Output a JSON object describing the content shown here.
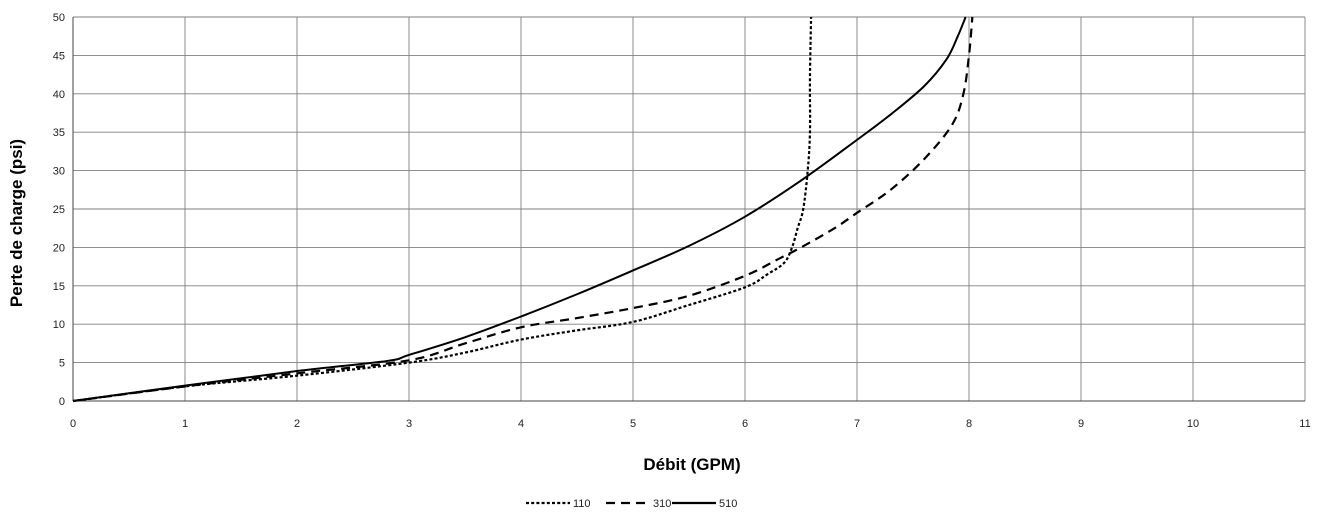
{
  "chart_data": {
    "type": "line",
    "title": "",
    "xlabel": "Débit (GPM)",
    "ylabel": "Perte de charge (psi)",
    "xlim": [
      0,
      11
    ],
    "ylim": [
      0,
      50
    ],
    "x_ticks": [
      "0",
      "1",
      "2",
      "3",
      "4",
      "5",
      "6",
      "7",
      "8",
      "9",
      "10",
      "11"
    ],
    "y_ticks": [
      "0",
      "5",
      "10",
      "15",
      "20",
      "25",
      "30",
      "35",
      "40",
      "45",
      "50"
    ],
    "grid": true,
    "legend_position": "bottom",
    "series": [
      {
        "name": "110",
        "style": "dotted",
        "x": [
          0,
          1,
          2,
          3,
          3.5,
          4,
          4.5,
          5,
          5.5,
          6,
          6.2,
          6.35,
          6.42,
          6.47,
          6.52,
          6.56,
          6.58,
          6.58,
          6.59
        ],
        "y": [
          0,
          1.9,
          3.3,
          5,
          6.3,
          8,
          9.2,
          10.3,
          12.5,
          14.8,
          16.5,
          18,
          20,
          22.5,
          25,
          30,
          35,
          42,
          50
        ]
      },
      {
        "name": "310",
        "style": "dashed",
        "x": [
          0,
          1,
          2,
          3,
          3.5,
          4,
          4.5,
          5,
          5.5,
          6,
          6.3,
          6.5,
          6.8,
          7,
          7.3,
          7.6,
          7.85,
          7.95,
          8,
          8.03
        ],
        "y": [
          0,
          1.9,
          3.6,
          5.3,
          7.5,
          9.6,
          10.8,
          12.1,
          13.7,
          16.3,
          18.5,
          20,
          22.5,
          24.5,
          27.5,
          31.5,
          36,
          40,
          45,
          50
        ]
      },
      {
        "name": "510",
        "style": "solid",
        "x": [
          0,
          1,
          2,
          2.8,
          3,
          3.5,
          4,
          4.5,
          5,
          5.5,
          6,
          6.5,
          7,
          7.3,
          7.6,
          7.8,
          7.9,
          7.97
        ],
        "y": [
          0,
          2,
          3.9,
          5.2,
          6,
          8.3,
          11,
          13.9,
          17,
          20.2,
          24,
          28.7,
          34,
          37.3,
          41,
          44.5,
          47.5,
          50
        ]
      }
    ]
  }
}
